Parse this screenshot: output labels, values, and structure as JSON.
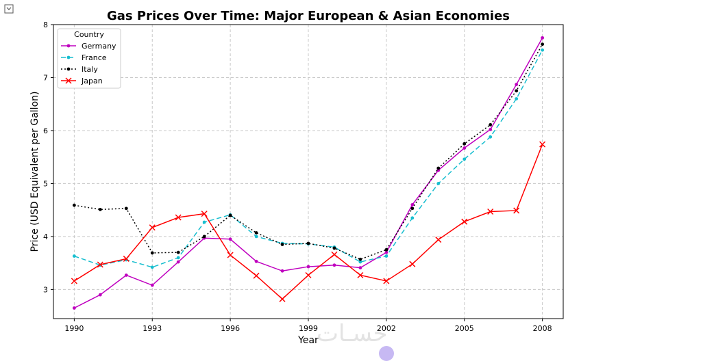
{
  "ui": {
    "output_icon": "output-toggle-icon",
    "watermark": "حسـات"
  },
  "chart_data": {
    "type": "line",
    "title": "Gas Prices Over Time: Major European & Asian Economies",
    "xlabel": "Year",
    "ylabel": "Price (USD Equivalent per Gallon)",
    "xlim": [
      1989.2,
      2008.8
    ],
    "ylim": [
      2.45,
      8.0
    ],
    "xticks": [
      1990,
      1993,
      1996,
      1999,
      2002,
      2005,
      2008
    ],
    "yticks": [
      3,
      4,
      5,
      6,
      7,
      8
    ],
    "grid": true,
    "legend": {
      "title": "Country",
      "position": "top-left"
    },
    "x": [
      1990,
      1991,
      1992,
      1993,
      1994,
      1995,
      1996,
      1997,
      1998,
      1999,
      2000,
      2001,
      2002,
      2003,
      2004,
      2005,
      2006,
      2007,
      2008
    ],
    "series": [
      {
        "name": "Germany",
        "color": "#bf00bf",
        "style": "solid",
        "marker": "dot",
        "values": [
          2.65,
          2.9,
          3.27,
          3.08,
          3.52,
          3.97,
          3.95,
          3.53,
          3.35,
          3.43,
          3.46,
          3.41,
          3.7,
          4.6,
          5.25,
          5.67,
          6.02,
          6.87,
          7.75
        ]
      },
      {
        "name": "France",
        "color": "#17becf",
        "style": "dashed",
        "marker": "dot",
        "values": [
          3.63,
          3.46,
          3.56,
          3.42,
          3.6,
          4.27,
          4.41,
          4.0,
          3.87,
          3.86,
          3.8,
          3.52,
          3.63,
          4.35,
          5.0,
          5.46,
          5.88,
          6.6,
          7.52
        ]
      },
      {
        "name": "Italy",
        "color": "#000000",
        "style": "dotted",
        "marker": "dot",
        "values": [
          4.59,
          4.51,
          4.53,
          3.69,
          3.7,
          4.0,
          4.4,
          4.07,
          3.85,
          3.87,
          3.78,
          3.57,
          3.75,
          4.53,
          5.29,
          5.75,
          6.11,
          6.75,
          7.63
        ]
      },
      {
        "name": "Japan",
        "color": "#ff0000",
        "style": "solid",
        "marker": "x",
        "values": [
          3.16,
          3.47,
          3.58,
          4.17,
          4.36,
          4.43,
          3.65,
          3.26,
          2.82,
          3.27,
          3.66,
          3.27,
          3.16,
          3.48,
          3.94,
          4.28,
          4.47,
          4.49,
          5.74
        ]
      }
    ]
  }
}
